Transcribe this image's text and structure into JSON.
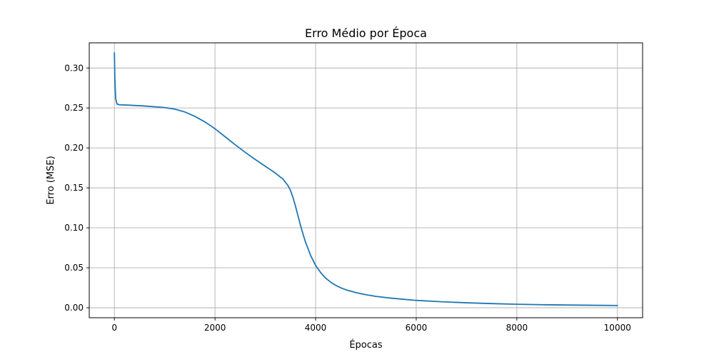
{
  "chart_data": {
    "type": "line",
    "title": "Erro Médio por Época",
    "xlabel": "Épocas",
    "ylabel": "Erro (MSE)",
    "xlim": [
      -500,
      10500
    ],
    "ylim": [
      -0.0125,
      0.3315
    ],
    "xticks": [
      0,
      2000,
      4000,
      6000,
      8000,
      10000
    ],
    "yticks": [
      0.0,
      0.05,
      0.1,
      0.15,
      0.2,
      0.25,
      0.3
    ],
    "xtick_labels": [
      "0",
      "2000",
      "4000",
      "6000",
      "8000",
      "10000"
    ],
    "ytick_labels": [
      "0.00",
      "0.05",
      "0.10",
      "0.15",
      "0.20",
      "0.25",
      "0.30"
    ],
    "grid": true,
    "series": [
      {
        "color": "#1f77b4",
        "x": [
          0,
          10,
          25,
          50,
          100,
          300,
          600,
          1000,
          1200,
          1400,
          1600,
          1800,
          2000,
          2200,
          2400,
          2600,
          2800,
          3000,
          3200,
          3350,
          3450,
          3500,
          3550,
          3600,
          3650,
          3700,
          3750,
          3800,
          3900,
          4000,
          4100,
          4200,
          4300,
          4400,
          4500,
          4600,
          4800,
          5000,
          5200,
          5500,
          6000,
          6500,
          7000,
          7500,
          8000,
          8500,
          9000,
          9500,
          10000
        ],
        "y": [
          0.319,
          0.285,
          0.262,
          0.255,
          0.254,
          0.2535,
          0.2525,
          0.2505,
          0.2485,
          0.245,
          0.2395,
          0.2325,
          0.224,
          0.214,
          0.204,
          0.1945,
          0.1855,
          0.177,
          0.1685,
          0.161,
          0.153,
          0.147,
          0.138,
          0.127,
          0.115,
          0.103,
          0.092,
          0.082,
          0.0655,
          0.053,
          0.044,
          0.037,
          0.032,
          0.028,
          0.025,
          0.0225,
          0.019,
          0.0163,
          0.0142,
          0.012,
          0.0092,
          0.0075,
          0.0062,
          0.0052,
          0.0044,
          0.0038,
          0.0034,
          0.0031,
          0.0028
        ]
      }
    ]
  }
}
